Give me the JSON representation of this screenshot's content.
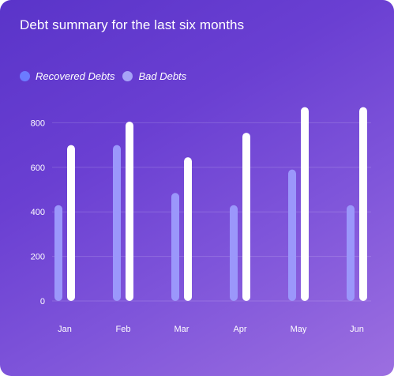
{
  "chart_data": {
    "type": "bar",
    "title": "Debt summary for the last six months",
    "categories": [
      "Jan",
      "Feb",
      "Mar",
      "Apr",
      "May",
      "Jun"
    ],
    "series": [
      {
        "name": "Recovered Debts",
        "color": "#9b97fb",
        "values": [
          430,
          700,
          485,
          430,
          590,
          430
        ]
      },
      {
        "name": "Bad Debts",
        "color": "#ffffff",
        "values": [
          700,
          805,
          645,
          755,
          870,
          870
        ]
      }
    ],
    "yticks": [
      0,
      200,
      400,
      600,
      800
    ],
    "ylim": [
      0,
      800
    ],
    "xlabel": "",
    "ylabel": "",
    "grid": true,
    "legend": {
      "placement": "top-left",
      "items": [
        {
          "label": "Recovered Debts",
          "color": "#6c7bff"
        },
        {
          "label": "Bad Debts",
          "color": "#a7a3f7"
        }
      ]
    }
  }
}
